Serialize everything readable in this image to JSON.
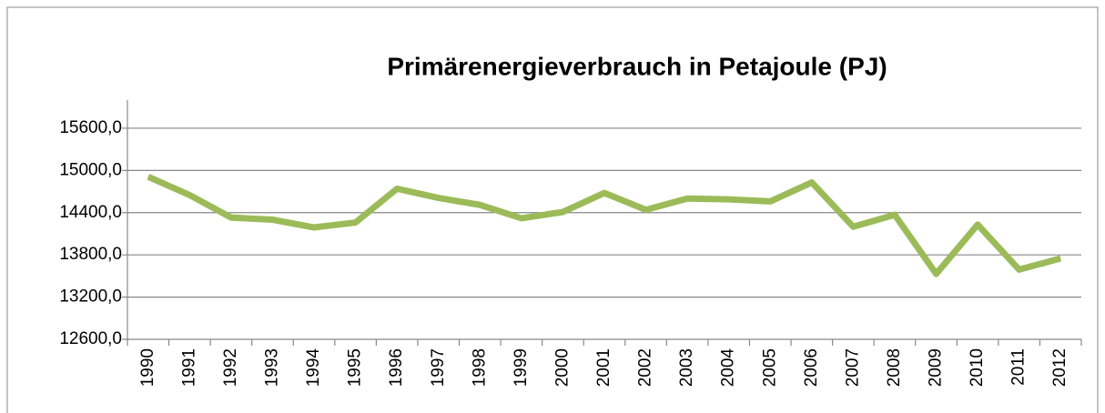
{
  "chart_data": {
    "type": "line",
    "title": "Primärenergieverbrauch in Petajoule (PJ)",
    "categories": [
      "1990",
      "1991",
      "1992",
      "1993",
      "1994",
      "1995",
      "1996",
      "1997",
      "1998",
      "1999",
      "2000",
      "2001",
      "2002",
      "2003",
      "2004",
      "2005",
      "2006",
      "2007",
      "2008",
      "2009",
      "2010",
      "2011",
      "2012"
    ],
    "values": [
      14910,
      14650,
      14330,
      14300,
      14190,
      14260,
      14740,
      14610,
      14510,
      14320,
      14410,
      14680,
      14440,
      14600,
      14590,
      14560,
      14830,
      14200,
      14370,
      13530,
      14230,
      13590,
      13750
    ],
    "color": "#9bbb59",
    "ylim": [
      12600,
      16000
    ],
    "yticks": [
      {
        "value": 12600,
        "label": "12600,0"
      },
      {
        "value": 13200,
        "label": "13200,0"
      },
      {
        "value": 13800,
        "label": "13800,0"
      },
      {
        "value": 14400,
        "label": "14400,0"
      },
      {
        "value": 15000,
        "label": "15000,0"
      },
      {
        "value": 15600,
        "label": "15600,0"
      }
    ],
    "grid": true
  }
}
